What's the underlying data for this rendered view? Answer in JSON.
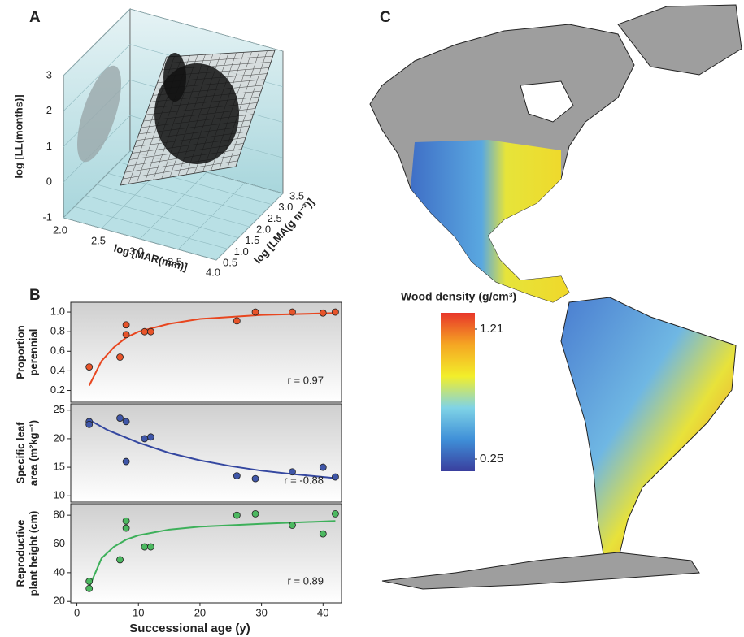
{
  "chart_data": [
    {
      "type": "scatter3d",
      "panel_label": "A",
      "xlabel": "log [MAR(mm)]",
      "ylabel": "log [LMA(g m⁻²)]",
      "zlabel": "log [LL(months)]",
      "xlim": [
        2,
        4
      ],
      "xticks": [
        {
          "value": 2,
          "label": "2.0"
        },
        2.5,
        {
          "value": 3,
          "label": "3.0"
        },
        3.5,
        {
          "value": 4,
          "label": "4.0"
        }
      ],
      "ylim": [
        0.5,
        3.5
      ],
      "yticks": [
        0.5,
        {
          "value": 1,
          "label": "1.0"
        },
        1.5,
        {
          "value": 2,
          "label": "2.0"
        },
        2.5,
        {
          "value": 3,
          "label": "3.0"
        },
        3.5
      ],
      "zlim": [
        -1,
        3
      ],
      "zticks": [
        -1,
        0,
        1,
        2,
        3
      ]
    },
    {
      "type": "scatter",
      "panel_label": "B",
      "ylabel": [
        "Proportion",
        "perennial"
      ],
      "annotation": "r = 0.97",
      "xlim": [
        -1,
        43
      ],
      "ylim": [
        0.08,
        1.1
      ],
      "yticks": [
        0.2,
        0.4,
        0.6,
        0.8,
        {
          "value": 1,
          "label": "1.0"
        }
      ],
      "points": {
        "color": "#e8542a",
        "x": [
          2,
          7,
          8,
          8,
          11,
          12,
          26,
          29,
          35,
          40,
          42
        ],
        "y": [
          0.44,
          0.54,
          0.77,
          0.87,
          0.8,
          0.8,
          0.91,
          1.0,
          1.0,
          0.99,
          1.0
        ]
      },
      "fit": {
        "color": "#e8461f",
        "x": [
          2,
          4,
          6,
          8,
          10,
          15,
          20,
          30,
          42
        ],
        "y": [
          0.25,
          0.5,
          0.64,
          0.74,
          0.8,
          0.88,
          0.93,
          0.97,
          0.99
        ]
      }
    },
    {
      "type": "scatter",
      "ylabel": [
        "Specific leaf",
        "area (m²kg⁻¹)"
      ],
      "annotation": "r = -0.88",
      "xlim": [
        -1,
        43
      ],
      "ylim": [
        8.9,
        26.1
      ],
      "yticks": [
        10,
        15,
        20,
        25
      ],
      "points": {
        "color": "#3f56a8",
        "x": [
          2,
          2,
          7,
          8,
          8,
          11,
          12,
          26,
          29,
          35,
          40,
          42
        ],
        "y": [
          23,
          22.5,
          23.6,
          23,
          16,
          20,
          20.3,
          13.5,
          13,
          14.2,
          15,
          13.3
        ]
      },
      "fit": {
        "color": "#3447a0",
        "x": [
          2,
          5,
          10,
          15,
          20,
          25,
          30,
          35,
          42
        ],
        "y": [
          23.3,
          21.5,
          19.3,
          17.5,
          16.2,
          15.2,
          14.4,
          13.8,
          13.1
        ]
      }
    },
    {
      "type": "scatter",
      "ylabel": [
        "Reproductive",
        "plant height (cm)"
      ],
      "annotation": "r = 0.89",
      "xlabel": "Successional age (y)",
      "xlim": [
        -1,
        43
      ],
      "xticks": [
        0,
        10,
        20,
        30,
        40
      ],
      "ylim": [
        19,
        88
      ],
      "yticks": [
        20,
        40,
        60,
        80
      ],
      "points": {
        "color": "#4cb860",
        "x": [
          2,
          2,
          7,
          8,
          8,
          11,
          12,
          26,
          29,
          35,
          40,
          42
        ],
        "y": [
          34,
          29,
          49,
          76,
          71,
          58,
          58,
          80,
          81,
          73,
          67,
          81
        ]
      },
      "fit": {
        "color": "#3db05a",
        "x": [
          2,
          4,
          6,
          8,
          10,
          15,
          20,
          30,
          42
        ],
        "y": [
          30,
          50,
          58,
          63,
          66,
          70,
          72,
          74,
          76
        ]
      }
    },
    {
      "type": "map",
      "panel_label": "C",
      "colorbar": {
        "title": "Wood density (g/cm³)",
        "clim": [
          0.16,
          1.33
        ],
        "ticks": [
          1.21,
          0.25
        ],
        "colors": [
          "#3a3f9e",
          "#3f8fd8",
          "#7fd3e6",
          "#f2ee2a",
          "#f5a623",
          "#e8362a"
        ]
      }
    }
  ]
}
